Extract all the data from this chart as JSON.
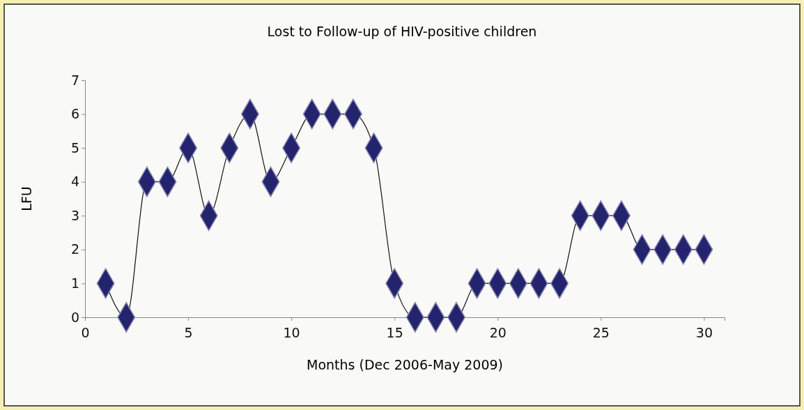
{
  "chart_data": {
    "type": "line",
    "title": "Lost to Follow-up of HIV-positive children",
    "xlabel": "Months (Dec 2006-May 2009)",
    "ylabel": "LFU",
    "x": [
      1,
      2,
      3,
      4,
      5,
      6,
      7,
      8,
      9,
      10,
      11,
      12,
      13,
      14,
      15,
      16,
      17,
      18,
      19,
      20,
      21,
      22,
      23,
      24,
      25,
      26,
      27,
      28,
      29,
      30
    ],
    "series": [
      {
        "color": "#24246e",
        "values": [
          1,
          0,
          4,
          4,
          5,
          3,
          5,
          6,
          4,
          5,
          6,
          6,
          6,
          5,
          1,
          0,
          0,
          0,
          1,
          1,
          1,
          1,
          1,
          3,
          3,
          3,
          2,
          2,
          2,
          2
        ]
      }
    ],
    "xlim": [
      0,
      31
    ],
    "xticks": [
      0,
      5,
      10,
      15,
      20,
      25,
      30
    ],
    "ylim": [
      0,
      7
    ],
    "yticks": [
      0,
      1,
      2,
      3,
      4,
      5,
      6,
      7
    ],
    "grid": false,
    "marker": "diamond",
    "line_style": "solid"
  }
}
